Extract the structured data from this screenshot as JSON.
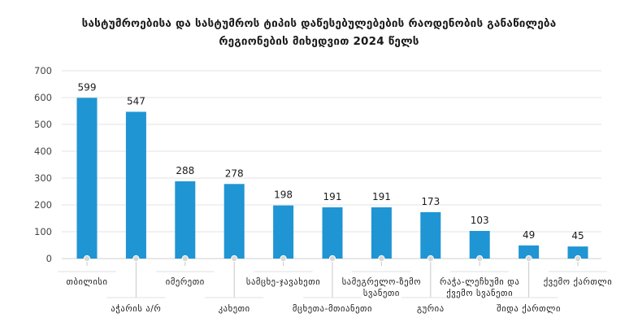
{
  "chart_data": {
    "type": "bar",
    "title_lines": [
      "სასტუმროებისა და სასტუმროს ტიპის დაწესებულებების რაოდენობის განაწილება",
      "რეგიონების მიხედვით 2024 წელს"
    ],
    "categories": [
      "თბილისი",
      "აჭარის ა/რ",
      "იმერეთი",
      "კახეთი",
      "სამცხე-ჯავახეთი",
      "მცხეთა-მთიანეთი",
      "სამეგრელო-ზემო სვანეთი",
      "გურია",
      "რაჭა-ლეჩხუმი და ქვემო სვანეთი",
      "შიდა ქართლი",
      "ქვემო ქართლი"
    ],
    "label_lines": [
      [
        "თბილისი"
      ],
      [
        "აჭარის ა/რ"
      ],
      [
        "იმერეთი"
      ],
      [
        "კახეთი"
      ],
      [
        "სამცხე-ჯავახეთი"
      ],
      [
        "მცხეთა-მთიანეთი"
      ],
      [
        "სამეგრელო-ზემო",
        "სვანეთი"
      ],
      [
        "გურია"
      ],
      [
        "რაჭა-ლეჩხუმი და",
        "ქვემო სვანეთი"
      ],
      [
        "შიდა ქართლი"
      ],
      [
        "ქვემო ქართლი"
      ]
    ],
    "label_row": [
      0,
      1,
      0,
      1,
      0,
      1,
      0,
      1,
      0,
      1,
      0
    ],
    "values": [
      599,
      547,
      288,
      278,
      198,
      191,
      191,
      173,
      103,
      49,
      45
    ],
    "ylim": [
      0,
      700
    ],
    "yticks": [
      0,
      100,
      200,
      300,
      400,
      500,
      600,
      700
    ],
    "grid": true,
    "bar_color": "#1f95d4",
    "grid_color": "#e3e3e3",
    "leader_color": "#c8c8c8"
  }
}
